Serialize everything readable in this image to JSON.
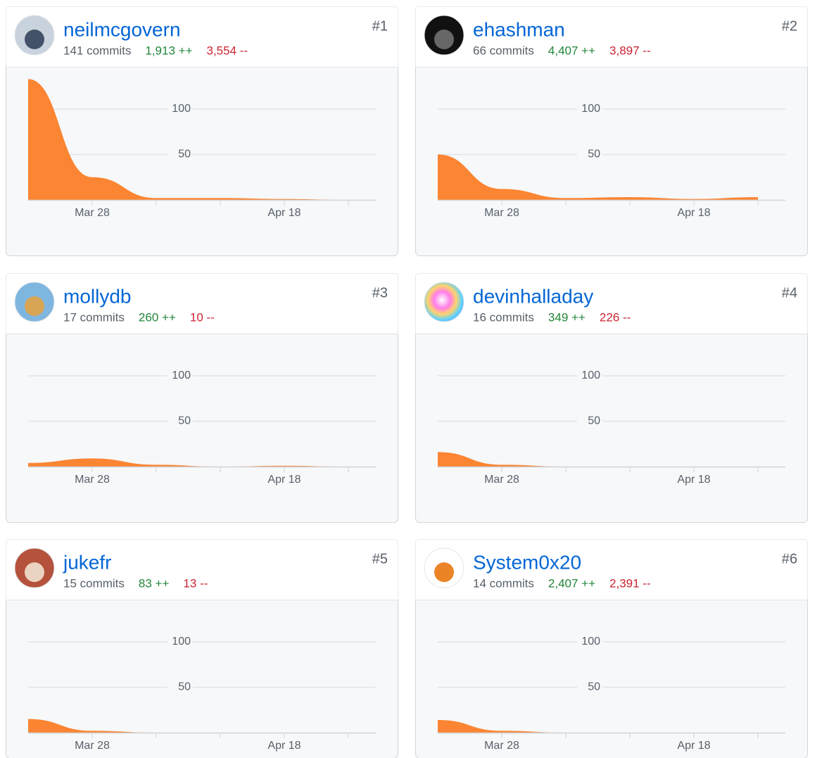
{
  "contributors": [
    {
      "rank": "#1",
      "username": "neilmcgovern",
      "commits": "141 commits",
      "additions": "1,913 ++",
      "deletions": "3,554 --",
      "chart_data": {
        "type": "area",
        "x": [
          null,
          "Mar 28",
          null,
          null,
          "Apr 18",
          null
        ],
        "values": [
          133,
          25,
          2,
          2,
          1,
          0
        ],
        "color": "#fb8532",
        "ylim": [
          0,
          140
        ],
        "yticks": [
          50,
          100
        ]
      }
    },
    {
      "rank": "#2",
      "username": "ehashman",
      "commits": "66 commits",
      "additions": "4,407 ++",
      "deletions": "3,897 --",
      "chart_data": {
        "type": "area",
        "x": [
          null,
          "Mar 28",
          null,
          null,
          "Apr 18",
          null
        ],
        "values": [
          50,
          12,
          2,
          3,
          1,
          3
        ],
        "color": "#fb8532",
        "ylim": [
          0,
          140
        ],
        "yticks": [
          50,
          100
        ]
      }
    },
    {
      "rank": "#3",
      "username": "mollydb",
      "commits": "17 commits",
      "additions": "260 ++",
      "deletions": "10 --",
      "chart_data": {
        "type": "area",
        "x": [
          null,
          "Mar 28",
          null,
          null,
          "Apr 18",
          null
        ],
        "values": [
          4,
          9,
          2,
          0,
          1,
          0
        ],
        "color": "#fb8532",
        "ylim": [
          0,
          140
        ],
        "yticks": [
          50,
          100
        ]
      }
    },
    {
      "rank": "#4",
      "username": "devinhalladay",
      "commits": "16 commits",
      "additions": "349 ++",
      "deletions": "226 --",
      "chart_data": {
        "type": "area",
        "x": [
          null,
          "Mar 28",
          null,
          null,
          "Apr 18",
          null
        ],
        "values": [
          16,
          2,
          0,
          0,
          0,
          0
        ],
        "color": "#fb8532",
        "ylim": [
          0,
          140
        ],
        "yticks": [
          50,
          100
        ]
      }
    },
    {
      "rank": "#5",
      "username": "jukefr",
      "commits": "15 commits",
      "additions": "83 ++",
      "deletions": "13 --",
      "chart_data": {
        "type": "area",
        "x": [
          null,
          "Mar 28",
          null,
          null,
          "Apr 18",
          null
        ],
        "values": [
          15,
          2,
          0,
          0,
          0,
          0
        ],
        "color": "#fb8532",
        "ylim": [
          0,
          140
        ],
        "yticks": [
          50,
          100
        ]
      }
    },
    {
      "rank": "#6",
      "username": "System0x20",
      "commits": "14 commits",
      "additions": "2,407 ++",
      "deletions": "2,391 --",
      "chart_data": {
        "type": "area",
        "x": [
          null,
          "Mar 28",
          null,
          null,
          "Apr 18",
          null
        ],
        "values": [
          14,
          2,
          0,
          0,
          0,
          0
        ],
        "color": "#fb8532",
        "ylim": [
          0,
          140
        ],
        "yticks": [
          50,
          100
        ]
      }
    }
  ]
}
